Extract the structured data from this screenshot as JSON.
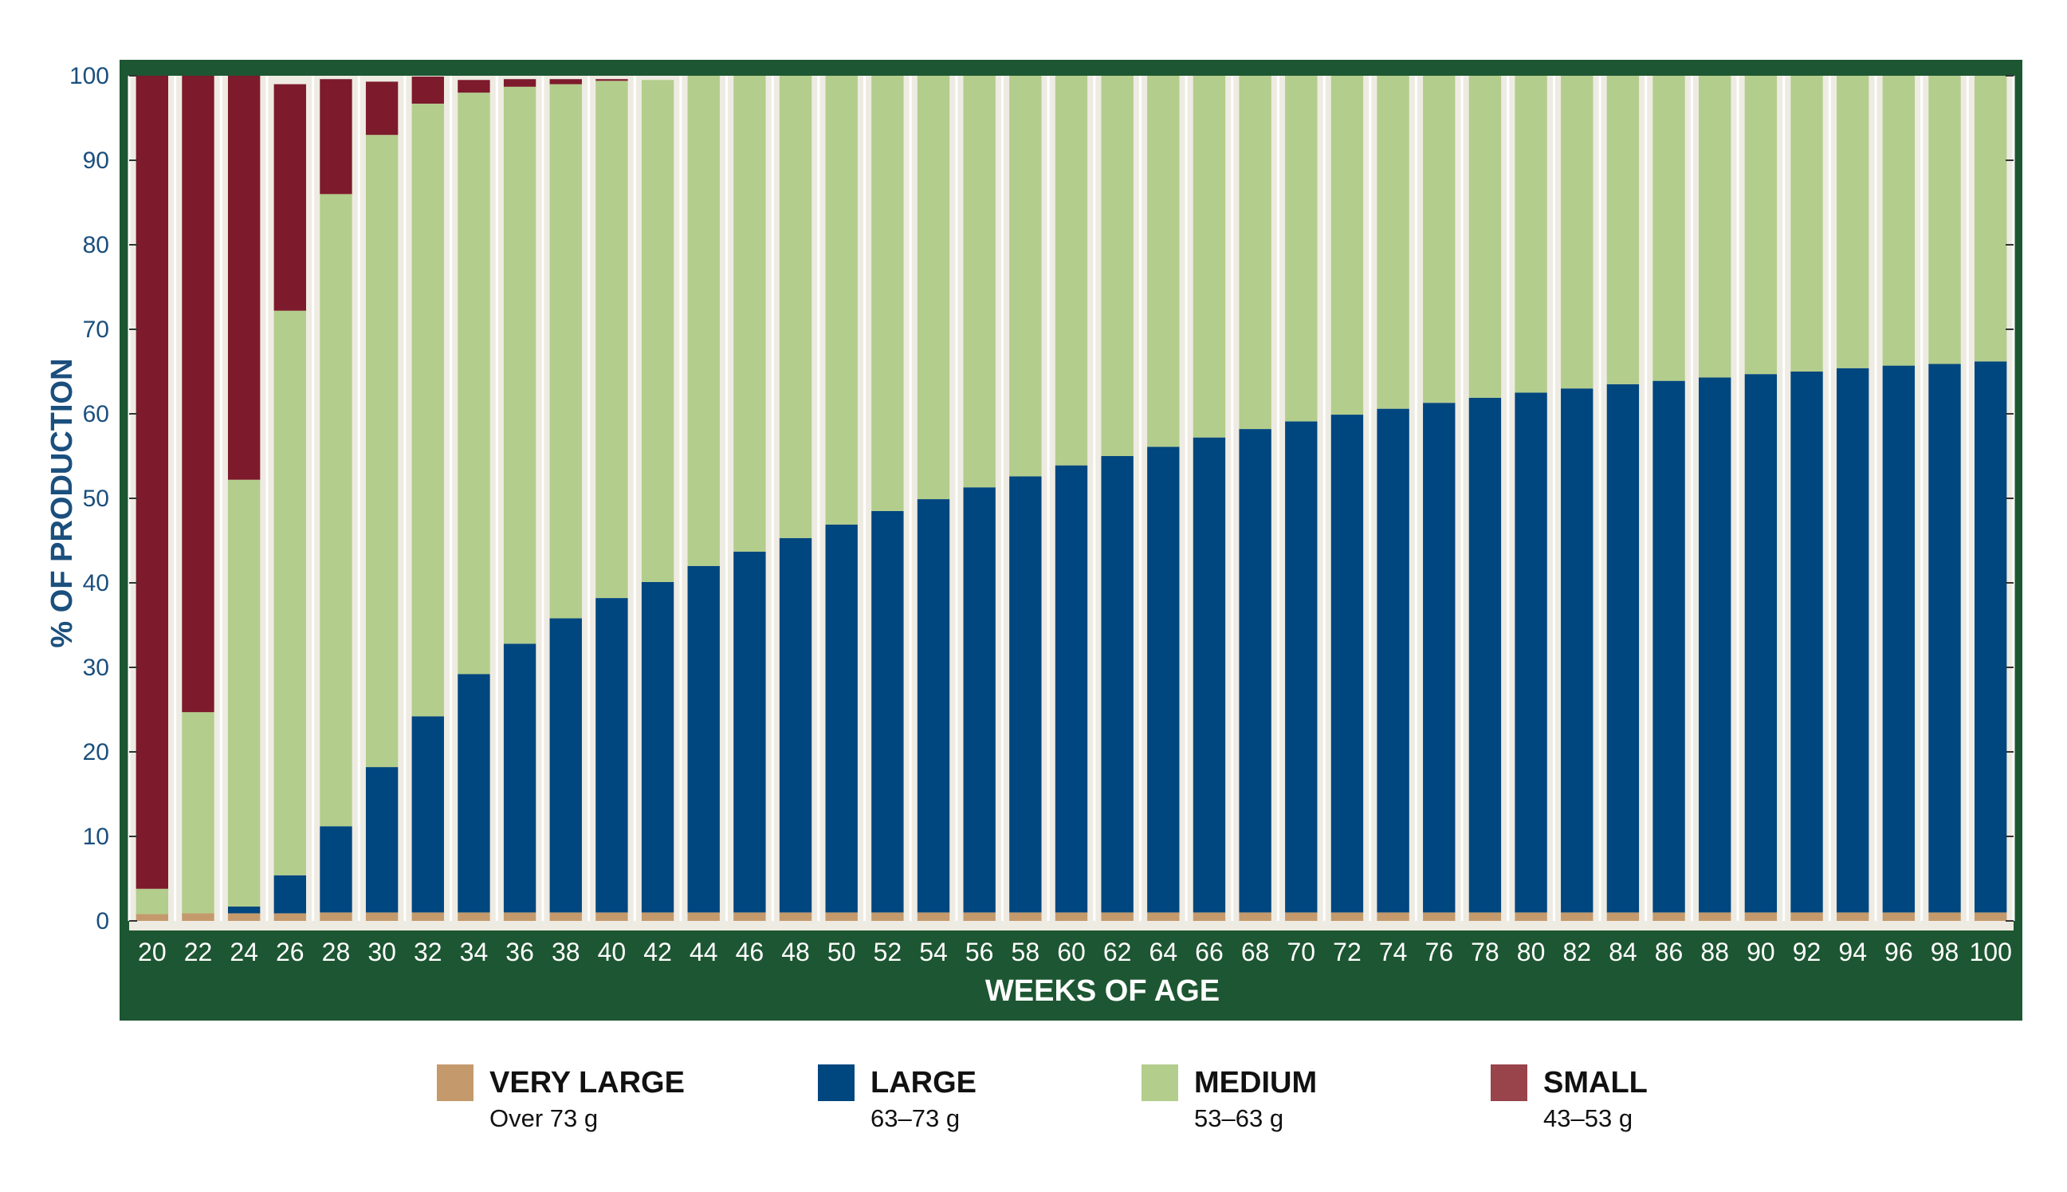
{
  "chart_data": {
    "type": "bar",
    "stacked": true,
    "title": "",
    "xlabel": "WEEKS OF AGE",
    "ylabel": "% OF PRODUCTION",
    "ylim": [
      0,
      100
    ],
    "yticks": [
      "0",
      "10",
      "20",
      "30",
      "40",
      "50",
      "60",
      "70",
      "80",
      "90",
      "100"
    ],
    "categories": [
      "20",
      "22",
      "24",
      "26",
      "28",
      "30",
      "32",
      "34",
      "36",
      "38",
      "40",
      "42",
      "44",
      "46",
      "48",
      "50",
      "52",
      "54",
      "56",
      "58",
      "60",
      "62",
      "64",
      "66",
      "68",
      "70",
      "72",
      "74",
      "76",
      "78",
      "80",
      "82",
      "84",
      "86",
      "88",
      "90",
      "92",
      "94",
      "96",
      "98",
      "100"
    ],
    "series": [
      {
        "name": "VERY LARGE",
        "description": "Over 73 g",
        "color": "#c49a6c",
        "values": [
          0.8,
          0.9,
          0.9,
          0.9,
          1,
          1,
          1,
          1,
          1,
          1,
          1,
          1,
          1,
          1,
          1,
          1,
          1,
          1,
          1,
          1,
          1,
          1,
          1,
          1,
          1,
          1,
          1,
          1,
          1,
          1,
          1,
          1,
          1,
          1,
          1,
          1,
          1,
          1,
          1,
          1,
          1
        ]
      },
      {
        "name": "LARGE",
        "description": "63–73 g",
        "color": "#00467f",
        "values": [
          0,
          0,
          0.8,
          4.5,
          10.2,
          17.2,
          23.2,
          28.2,
          31.8,
          34.8,
          37.2,
          39.1,
          41,
          42.7,
          44.3,
          45.9,
          47.5,
          48.9,
          50.3,
          51.6,
          52.9,
          54,
          55.1,
          56.2,
          57.2,
          58.1,
          58.9,
          59.6,
          60.3,
          60.9,
          61.5,
          62,
          62.5,
          62.9,
          63.3,
          63.7,
          64,
          64.4,
          64.7,
          64.9,
          65.2
        ]
      },
      {
        "name": "MEDIUM",
        "description": "53–63 g",
        "color": "#b3cd8c",
        "values": [
          3,
          23.8,
          50.5,
          66.8,
          74.8,
          74.8,
          72.5,
          68.8,
          65.9,
          63.2,
          61.2,
          59.4,
          58,
          56.3,
          54.7,
          53.1,
          51.5,
          50.1,
          48.7,
          47.4,
          46.1,
          45,
          43.9,
          42.8,
          41.8,
          40.9,
          40.1,
          39.4,
          38.7,
          38.1,
          37.5,
          37,
          36.5,
          36.1,
          35.7,
          35.3,
          35,
          34.6,
          34.3,
          34.1,
          33.8
        ]
      },
      {
        "name": "SMALL",
        "description": "43–53 g",
        "color": "#7d1a2c",
        "values": [
          96.2,
          75.3,
          47.8,
          26.8,
          13.6,
          6.3,
          3.2,
          1.5,
          0.9,
          0.6,
          0.2,
          0,
          0,
          0,
          0,
          0,
          0,
          0,
          0,
          0,
          0,
          0,
          0,
          0,
          0,
          0,
          0,
          0,
          0,
          0,
          0,
          0,
          0,
          0,
          0,
          0,
          0,
          0,
          0,
          0,
          0
        ]
      }
    ],
    "legend_position": "bottom",
    "grid": true,
    "colors": {
      "frame": "#1d5632",
      "plot_background": "#eeebe3",
      "axis_text": "#1b4f7d",
      "small_swatch": "#99434a"
    }
  }
}
